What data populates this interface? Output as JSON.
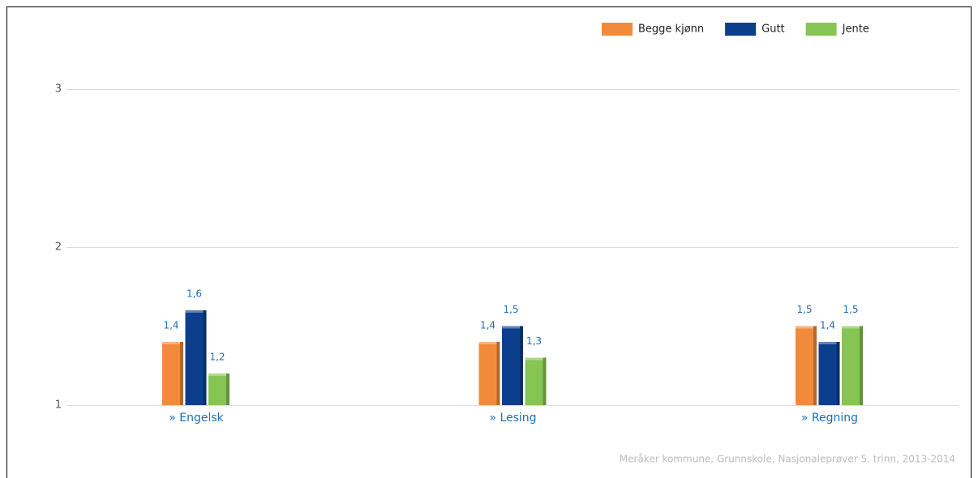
{
  "chart_data": {
    "type": "bar",
    "categories": [
      "» Engelsk",
      "» Lesing",
      "» Regning"
    ],
    "series": [
      {
        "name": "Begge kjønn",
        "color": "#f28a3c",
        "values": [
          1.4,
          1.4,
          1.5
        ],
        "value_labels": [
          "1,4",
          "1,4",
          "1,5"
        ]
      },
      {
        "name": "Gutt",
        "color": "#0b3f8c",
        "values": [
          1.6,
          1.5,
          1.4
        ],
        "value_labels": [
          "1,6",
          "1,5",
          "1,4"
        ]
      },
      {
        "name": "Jente",
        "color": "#86c453",
        "values": [
          1.2,
          1.3,
          1.5
        ],
        "value_labels": [
          "1,2",
          "1,3",
          "1,5"
        ]
      }
    ],
    "ylim": [
      1,
      3
    ],
    "yticks": [
      1,
      2,
      3
    ],
    "grid": true,
    "legend": "top-right",
    "source": "Meråker kommune, Grunnskole, Nasjonaleprøver 5. trinn, 2013-2014"
  }
}
